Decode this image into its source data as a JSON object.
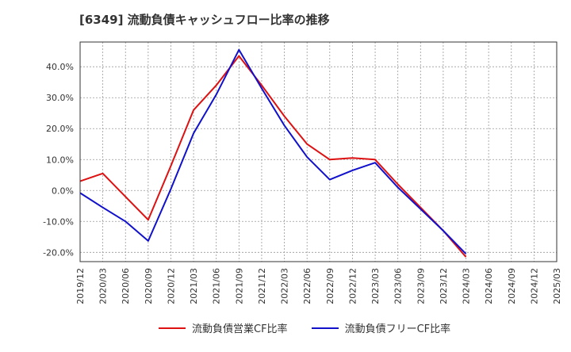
{
  "chart_data": {
    "type": "line",
    "title": "[6349]  流動負債キャッシュフロー比率の推移",
    "x": [
      "2019/12",
      "2020/03",
      "2020/06",
      "2020/09",
      "2020/12",
      "2021/03",
      "2021/06",
      "2021/09",
      "2021/12",
      "2022/03",
      "2022/06",
      "2022/09",
      "2022/12",
      "2023/03",
      "2023/06",
      "2023/09",
      "2023/12",
      "2024/03",
      "2024/06",
      "2024/09",
      "2024/12",
      "2025/03"
    ],
    "yticks": [
      -20,
      -10,
      0,
      10,
      20,
      30,
      40
    ],
    "ytick_labels": [
      "-20.0%",
      "-10.0%",
      "0.0%",
      "10.0%",
      "20.0%",
      "30.0%",
      "40.0%"
    ],
    "ylim": [
      -23,
      48
    ],
    "grid": true,
    "legend_position": "bottom",
    "series": [
      {
        "name": "流動負債営業CF比率",
        "color": "#dd1111",
        "values": [
          3.0,
          5.5,
          -2.0,
          -9.5,
          8.0,
          26.0,
          34.0,
          43.5,
          34.0,
          24.0,
          15.0,
          10.0,
          10.5,
          10.0,
          2.0,
          -5.5,
          -13.0,
          -21.5,
          null,
          null,
          null,
          null
        ]
      },
      {
        "name": "流動負債フリーCF比率",
        "color": "#1111cc",
        "values": [
          -0.8,
          -5.5,
          -10.0,
          -16.3,
          0.5,
          18.5,
          31.0,
          45.5,
          33.0,
          21.0,
          10.8,
          3.5,
          6.5,
          9.0,
          1.0,
          -6.0,
          -13.0,
          -20.5,
          null,
          null,
          null,
          null
        ]
      }
    ]
  }
}
